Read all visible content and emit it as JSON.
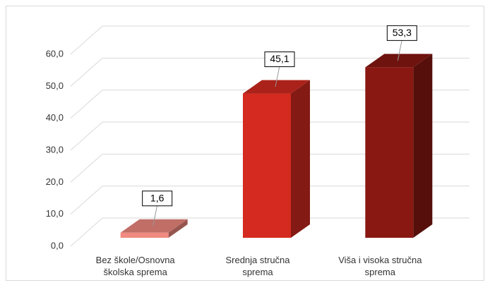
{
  "chart_data": {
    "type": "bar3d",
    "categories": [
      "Bez škole/Osnovna školska sprema",
      "Srednja stručna sprema",
      "Viša i visoka stručna sprema"
    ],
    "values": [
      1.6,
      45.1,
      53.3
    ],
    "value_labels": [
      "1,6",
      "45,1",
      "53,3"
    ],
    "colors": [
      "#f08a80",
      "#d42a1f",
      "#8a1812"
    ],
    "ylim": [
      0,
      60
    ],
    "yticks": [
      {
        "value": 0,
        "label": "0,0"
      },
      {
        "value": 10,
        "label": "10,0"
      },
      {
        "value": 20,
        "label": "20,0"
      },
      {
        "value": 30,
        "label": "30,0"
      },
      {
        "value": 40,
        "label": "40,0"
      },
      {
        "value": 50,
        "label": "50,0"
      },
      {
        "value": 60,
        "label": "60,0"
      }
    ],
    "grid": true
  }
}
